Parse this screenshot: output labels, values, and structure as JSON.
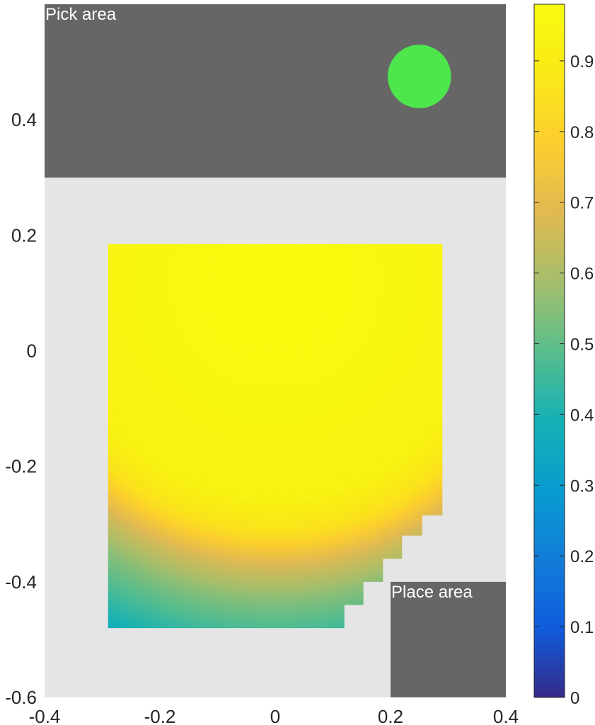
{
  "chart_data": {
    "type": "heatmap",
    "title": "",
    "xlabel": "",
    "ylabel": "",
    "xlim": [
      -0.4,
      0.4
    ],
    "ylim": [
      -0.6,
      0.6
    ],
    "x_ticks": [
      {
        "value": -0.4,
        "label": "-0.4"
      },
      {
        "value": -0.2,
        "label": "-0.2"
      },
      {
        "value": 0,
        "label": "0"
      },
      {
        "value": 0.2,
        "label": "0.2"
      },
      {
        "value": 0.4,
        "label": "0.4"
      }
    ],
    "y_ticks": [
      {
        "value": 0.4,
        "label": "0.4"
      },
      {
        "value": 0.2,
        "label": "0.2"
      },
      {
        "value": 0,
        "label": "0"
      },
      {
        "value": -0.2,
        "label": "-0.2"
      },
      {
        "value": -0.4,
        "label": "-0.4"
      },
      {
        "value": -0.6,
        "label": "-0.6"
      }
    ],
    "colorbar": {
      "range": [
        0,
        0.98
      ],
      "ticks": [
        {
          "value": 0,
          "label": "0"
        },
        {
          "value": 0.1,
          "label": "0.1"
        },
        {
          "value": 0.2,
          "label": "0.2"
        },
        {
          "value": 0.3,
          "label": "0.3"
        },
        {
          "value": 0.4,
          "label": "0.4"
        },
        {
          "value": 0.5,
          "label": "0.5"
        },
        {
          "value": 0.6,
          "label": "0.6"
        },
        {
          "value": 0.7,
          "label": "0.7"
        },
        {
          "value": 0.8,
          "label": "0.8"
        },
        {
          "value": 0.9,
          "label": "0.9"
        }
      ],
      "colormap": "parula"
    },
    "regions": [
      {
        "label": "Pick area",
        "x": [
          -0.4,
          0.4
        ],
        "y": [
          0.3,
          0.6
        ],
        "color": "#666666"
      },
      {
        "label": "Place area",
        "x": [
          0.2,
          0.4
        ],
        "y": [
          -0.6,
          -0.4
        ],
        "color": "#666666"
      }
    ],
    "marker": {
      "x": 0.25,
      "y": 0.475,
      "radius": 0.055,
      "color": "#4de64d"
    },
    "field": {
      "x_range": [
        -0.29,
        0.29
      ],
      "y_range": [
        -0.48,
        0.185
      ],
      "outline": [
        [
          -0.29,
          0.185
        ],
        [
          0.29,
          0.185
        ],
        [
          0.29,
          -0.285
        ],
        [
          0.255,
          -0.285
        ],
        [
          0.255,
          -0.32
        ],
        [
          0.22,
          -0.32
        ],
        [
          0.22,
          -0.36
        ],
        [
          0.187,
          -0.36
        ],
        [
          0.187,
          -0.4
        ],
        [
          0.153,
          -0.4
        ],
        [
          0.153,
          -0.44
        ],
        [
          0.12,
          -0.44
        ],
        [
          0.12,
          -0.48
        ],
        [
          -0.29,
          -0.48
        ]
      ],
      "model": "radial",
      "center": [
        0.5,
        0.9
      ],
      "radial_profile": [
        {
          "r": 0.1,
          "value": 0.98
        },
        {
          "r": 0.65,
          "value": 0.93
        },
        {
          "r": 0.75,
          "value": 0.85
        },
        {
          "r": 0.85,
          "value": 0.67
        },
        {
          "r": 0.95,
          "value": 0.55
        },
        {
          "r": 1.07,
          "value": 0.44
        },
        {
          "r": 1.2,
          "value": 0.32
        },
        {
          "r": 1.35,
          "value": 0.2
        },
        {
          "r": 1.5,
          "value": 0.07
        }
      ]
    },
    "background_color": "#e5e5e5"
  }
}
